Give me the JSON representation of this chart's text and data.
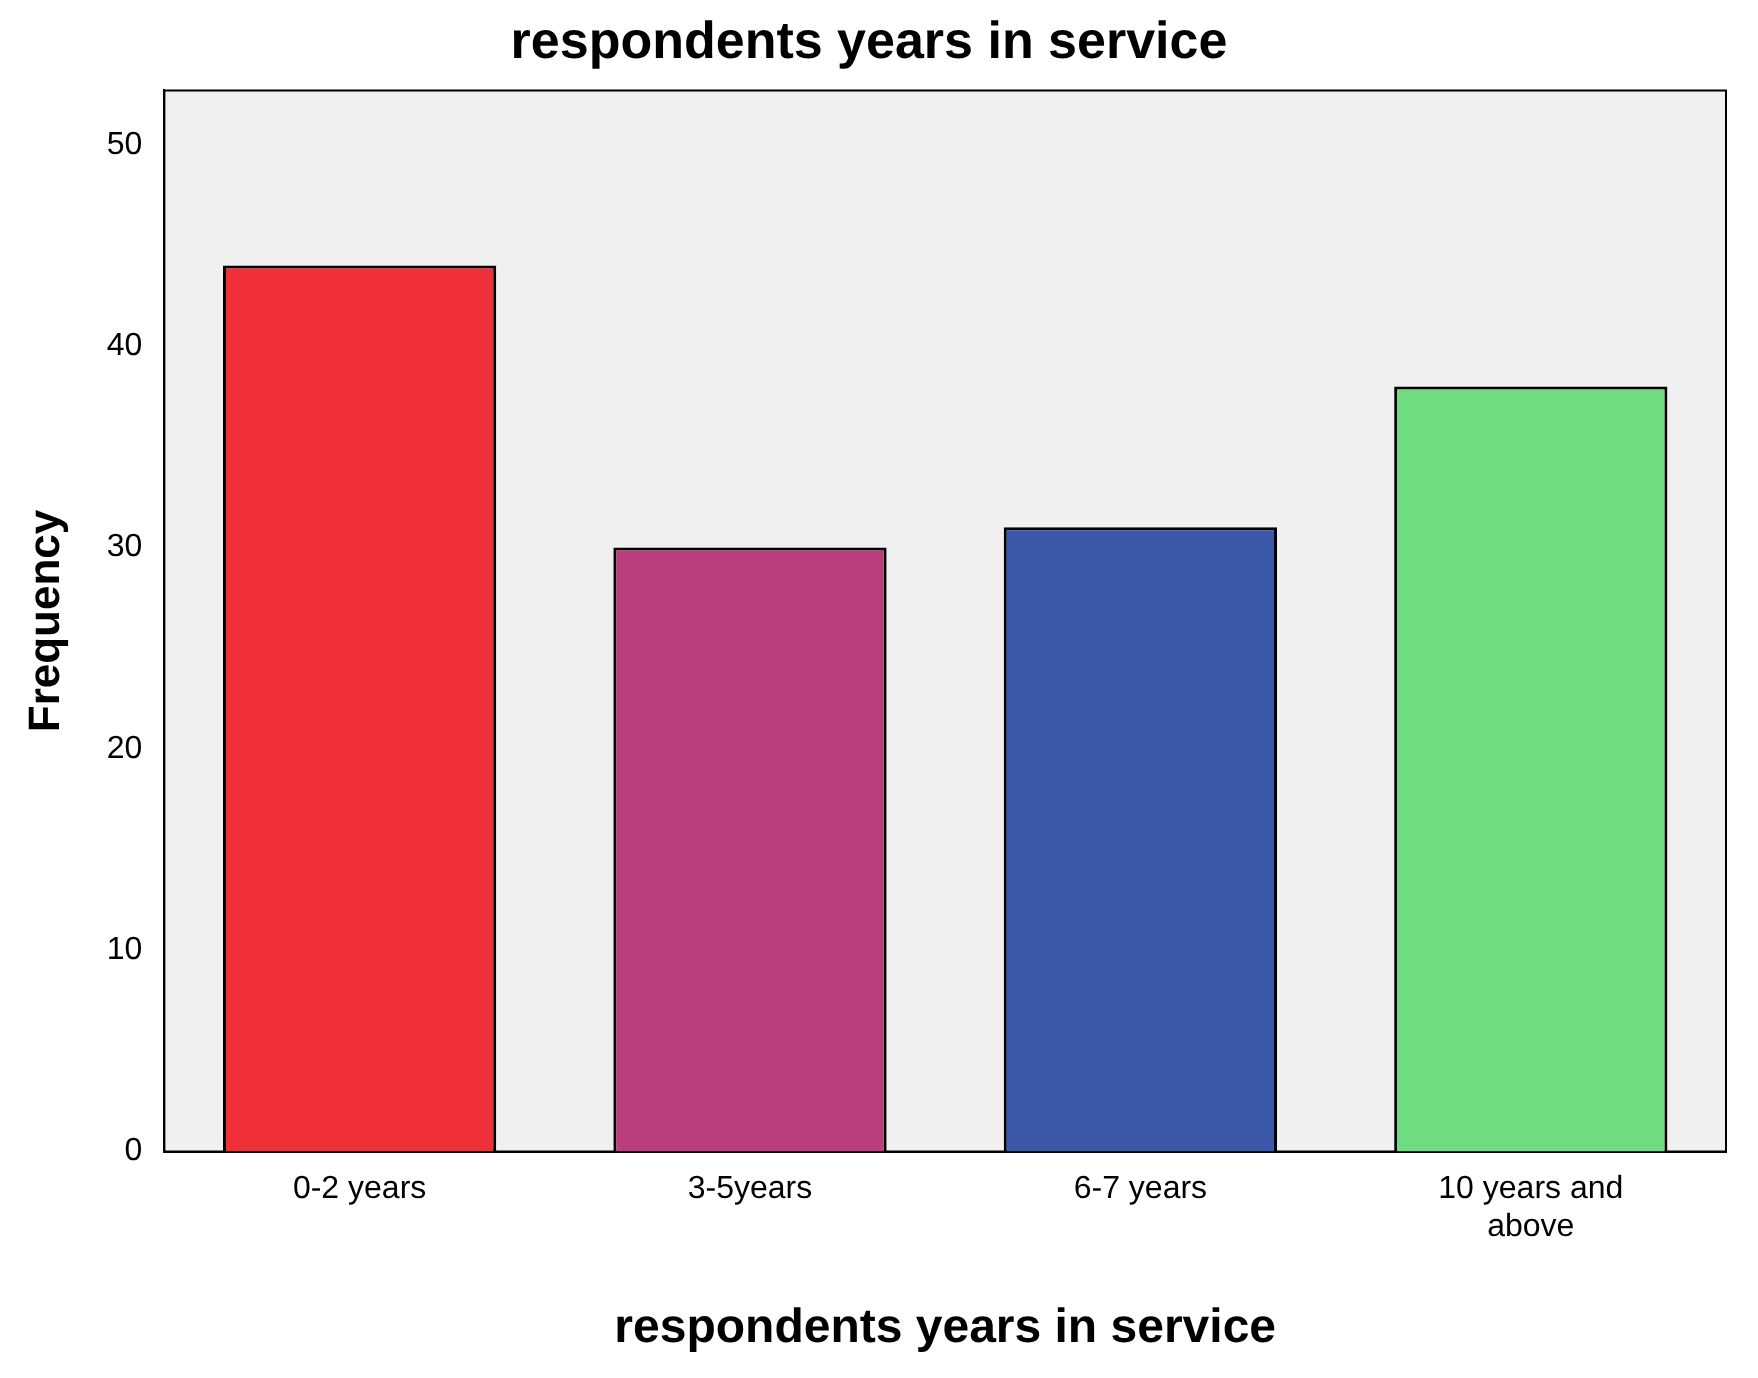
{
  "chart_data": {
    "type": "bar",
    "title": "respondents years in service",
    "xlabel": "respondents years in service",
    "ylabel": "Frequency",
    "categories": [
      "0-2 years",
      "3-5years",
      "6-7 years",
      "10 years and above"
    ],
    "values": [
      44,
      30,
      31,
      38
    ],
    "colors": [
      "#ef3038",
      "#bb3d7e",
      "#3c58a8",
      "#6fdc82"
    ],
    "ylim": [
      0,
      52.7
    ],
    "yticks": [
      0,
      10,
      20,
      30,
      40,
      50
    ],
    "grid": false,
    "legend": false
  }
}
